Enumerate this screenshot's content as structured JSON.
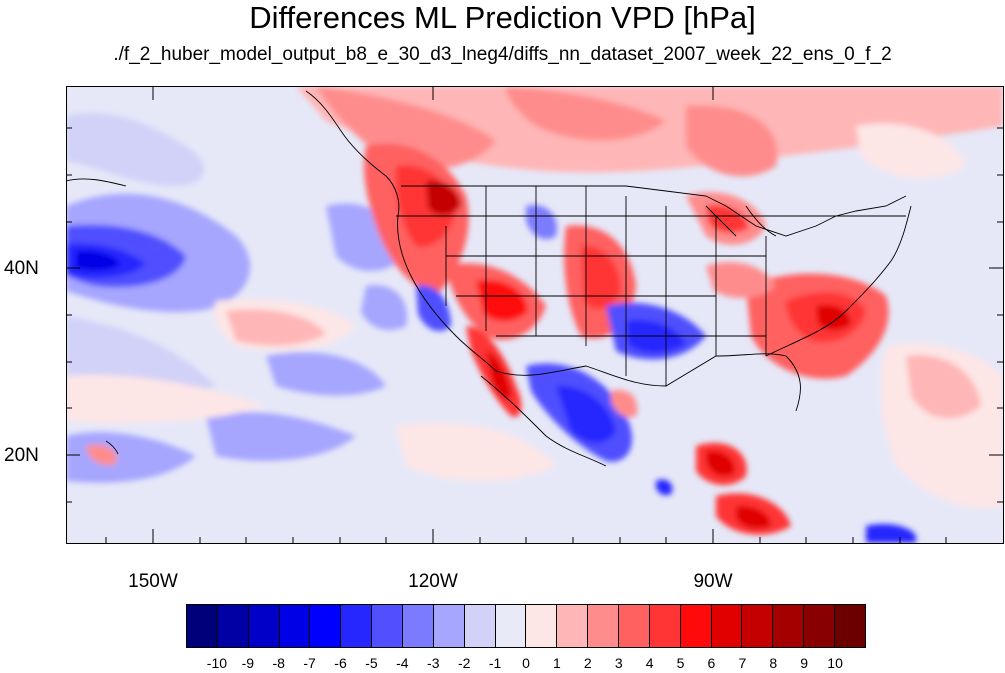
{
  "title": "Differences ML Prediction VPD [hPa]",
  "subtitle": "./f_2_huber_model_output_b8_e_30_d3_lneg4/diffs_nn_dataset_2007_week_22_ens_0_f_2",
  "lat_labels": [
    "40N",
    "20N"
  ],
  "lon_labels": [
    "150W",
    "120W",
    "90W"
  ],
  "colorbar": {
    "labels": [
      "-10",
      "-9",
      "-8",
      "-7",
      "-6",
      "-5",
      "-4",
      "-3",
      "-2",
      "-1",
      "0",
      "1",
      "2",
      "3",
      "4",
      "5",
      "6",
      "7",
      "8",
      "9",
      "10"
    ],
    "colors": [
      "#00007a",
      "#0000a4",
      "#0000c8",
      "#0000e6",
      "#0000ff",
      "#2626ff",
      "#5050ff",
      "#7b7bff",
      "#a6a6ff",
      "#d2d2f8",
      "#e8eaf8",
      "#fde6e6",
      "#ffb6b6",
      "#ff8c8c",
      "#ff6060",
      "#ff3434",
      "#ff0a0a",
      "#e00000",
      "#c40000",
      "#a40000",
      "#880000",
      "#6c0000"
    ]
  }
}
